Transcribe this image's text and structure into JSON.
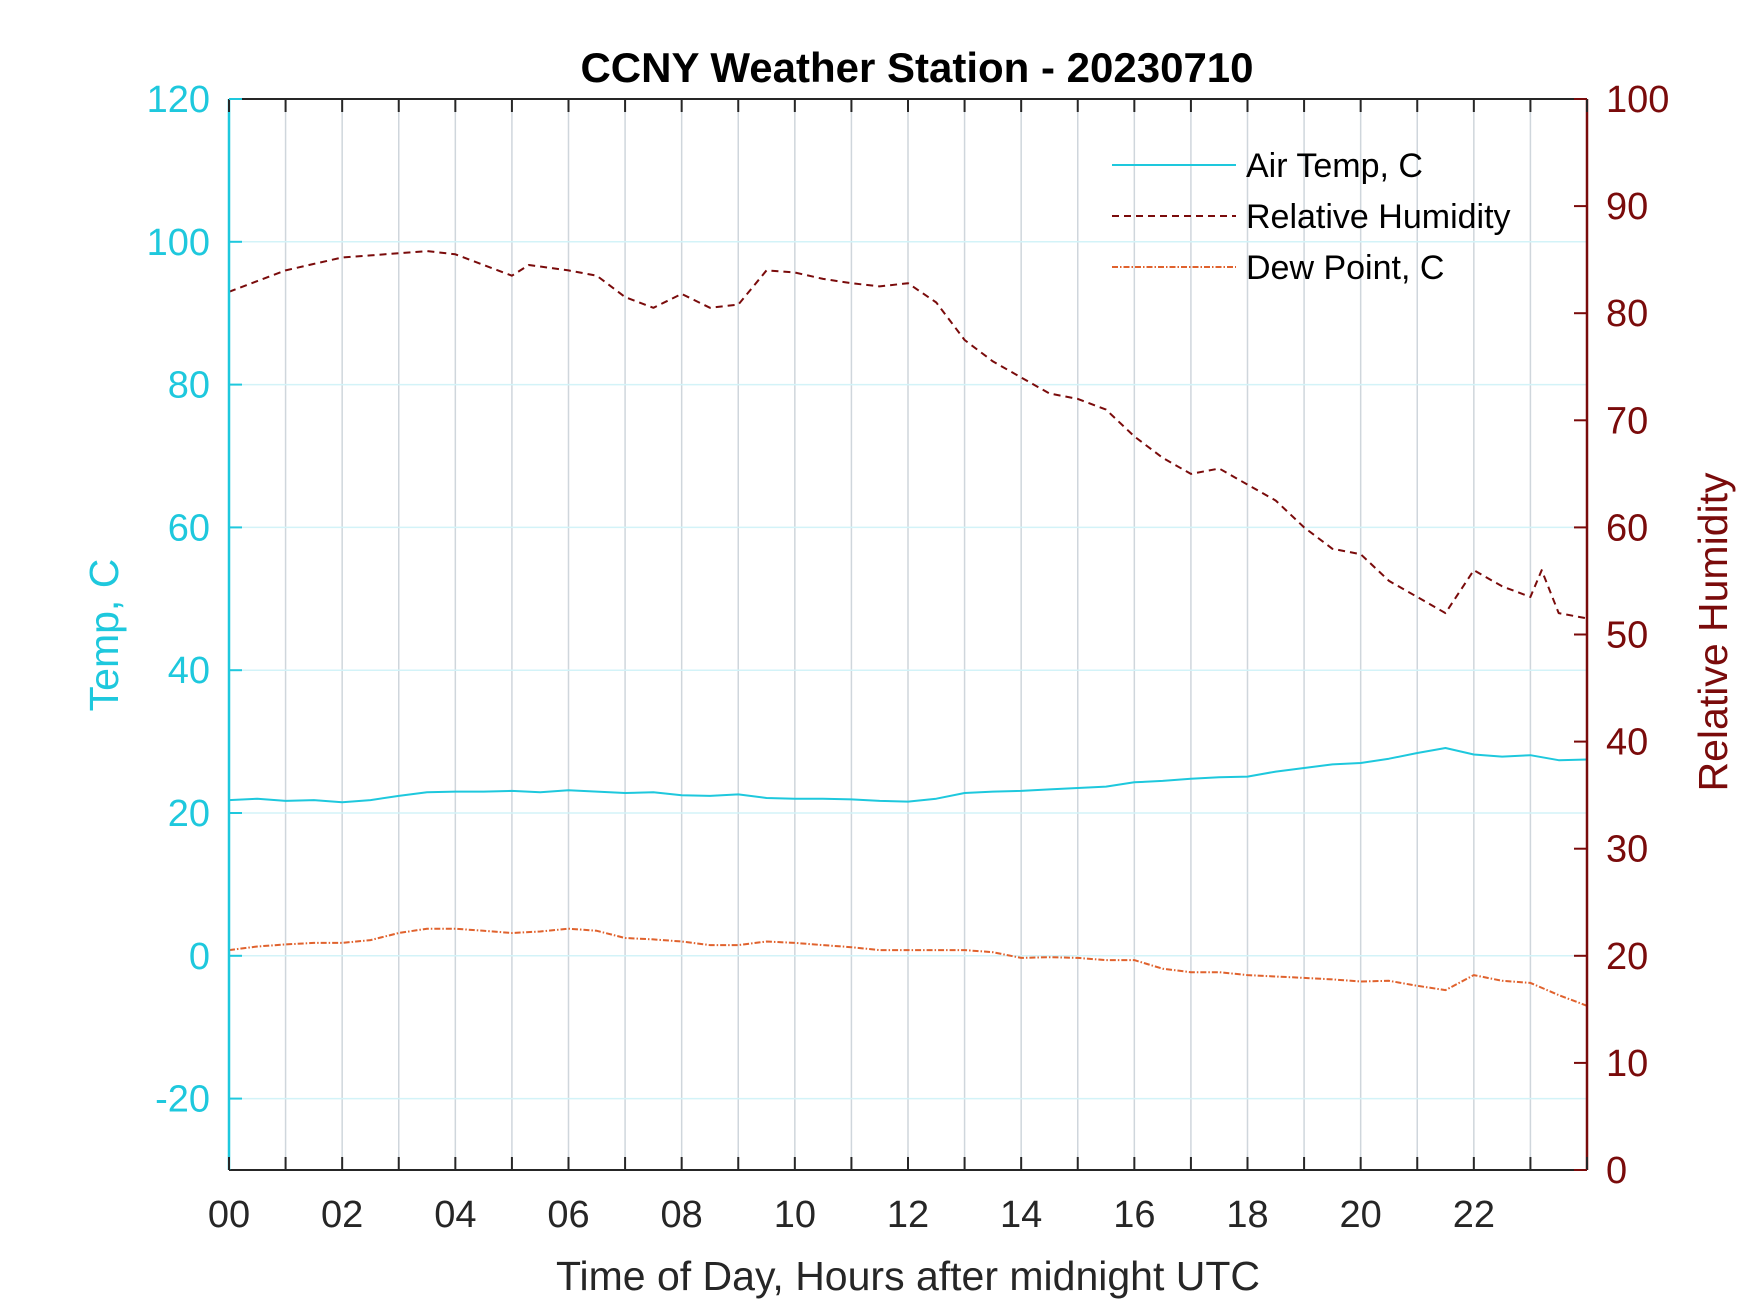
{
  "chart_data": {
    "type": "line",
    "title": "CCNY Weather Station - 20230710",
    "xlabel": "Time of Day, Hours after midnight UTC",
    "ylabel_left": "Temp, C",
    "ylabel_right": "Relative Humidity",
    "xlim": [
      0,
      24
    ],
    "ylim_left": [
      -30,
      120
    ],
    "ylim_right": [
      0,
      100
    ],
    "x_ticks": [
      0,
      2,
      4,
      6,
      8,
      10,
      12,
      14,
      16,
      18,
      20,
      22
    ],
    "x_tick_labels": [
      "00",
      "02",
      "04",
      "06",
      "08",
      "10",
      "12",
      "14",
      "16",
      "18",
      "20",
      "22"
    ],
    "y_left_ticks": [
      -20,
      0,
      20,
      40,
      60,
      80,
      100,
      120
    ],
    "y_left_tick_labels": [
      "-20",
      "0",
      "20",
      "40",
      "60",
      "80",
      "100",
      "120"
    ],
    "y_right_ticks": [
      0,
      10,
      20,
      30,
      40,
      50,
      60,
      70,
      80,
      90,
      100
    ],
    "y_right_tick_labels": [
      "0",
      "10",
      "20",
      "30",
      "40",
      "50",
      "60",
      "70",
      "80",
      "90",
      "100"
    ],
    "grid": "vertical lines every hour; horizontal lines at left-axis ticks",
    "legend_position": "top-right",
    "colors": {
      "left_axis": "#1ec8dd",
      "right_axis": "#7a0b0b",
      "air_temp": "#1ec8dd",
      "humidity": "#7a0b0b",
      "dew_point": "#e0622d",
      "grid_vertical": "#cfd6dc",
      "grid_horizontal": "#d3f3f8"
    },
    "series": [
      {
        "name": "Air Temp, C",
        "axis": "left",
        "style": "solid",
        "x": [
          0,
          0.5,
          1,
          1.5,
          2,
          2.5,
          3,
          3.5,
          4,
          4.5,
          5,
          5.5,
          6,
          6.5,
          7,
          7.5,
          8,
          8.5,
          9,
          9.5,
          10,
          10.5,
          11,
          11.5,
          12,
          12.5,
          13,
          13.5,
          14,
          14.5,
          15,
          15.5,
          16,
          16.5,
          17,
          17.5,
          18,
          18.5,
          19,
          19.5,
          20,
          20.5,
          21,
          21.5,
          22,
          22.5,
          23,
          23.5,
          24
        ],
        "y": [
          21.8,
          22.0,
          21.7,
          21.8,
          21.5,
          21.8,
          22.4,
          22.9,
          23.0,
          23.0,
          23.1,
          22.9,
          23.2,
          23.0,
          22.8,
          22.9,
          22.5,
          22.4,
          22.6,
          22.1,
          22.0,
          22.0,
          21.9,
          21.7,
          21.6,
          22.0,
          22.8,
          23.0,
          23.1,
          23.3,
          23.5,
          23.7,
          24.3,
          24.5,
          24.8,
          25.0,
          25.1,
          25.8,
          26.3,
          26.8,
          27.0,
          27.6,
          28.4,
          29.1,
          28.2,
          27.9,
          28.1,
          27.4,
          27.5
        ]
      },
      {
        "name": "Relative Humidity",
        "axis": "right",
        "style": "dashed",
        "x": [
          0,
          0.5,
          1,
          1.5,
          2,
          2.5,
          3,
          3.5,
          4,
          4.5,
          5,
          5.3,
          6,
          6.5,
          7,
          7.5,
          8,
          8.5,
          9,
          9.5,
          10,
          10.5,
          11,
          11.5,
          12,
          12.5,
          13,
          13.5,
          14,
          14.5,
          15,
          15.5,
          16,
          16.5,
          17,
          17.5,
          18,
          18.5,
          19,
          19.5,
          20,
          20.5,
          21,
          21.5,
          22,
          22.5,
          23,
          23.2,
          23.5,
          24
        ],
        "y": [
          82.0,
          83.0,
          84.0,
          84.6,
          85.2,
          85.4,
          85.6,
          85.8,
          85.5,
          84.5,
          83.5,
          84.5,
          84.0,
          83.5,
          81.5,
          80.5,
          81.8,
          80.5,
          80.8,
          84.0,
          83.8,
          83.2,
          82.8,
          82.5,
          82.8,
          81.0,
          77.5,
          75.5,
          74.0,
          72.5,
          72.0,
          71.0,
          68.5,
          66.5,
          65.0,
          65.5,
          64.0,
          62.5,
          60.0,
          58.0,
          57.5,
          55.0,
          53.5,
          52.0,
          56.0,
          54.5,
          53.5,
          56.0,
          52.0,
          51.5
        ]
      },
      {
        "name": "Dew Point, C",
        "axis": "left",
        "style": "dash-dot",
        "x": [
          0,
          0.5,
          1,
          1.5,
          2,
          2.5,
          3,
          3.5,
          4,
          4.5,
          5,
          5.5,
          6,
          6.5,
          7,
          7.5,
          8,
          8.5,
          9,
          9.5,
          10,
          10.5,
          11,
          11.5,
          12,
          12.5,
          13,
          13.5,
          14,
          14.5,
          15,
          15.5,
          16,
          16.5,
          17,
          17.5,
          18,
          18.5,
          19,
          19.5,
          20,
          20.5,
          21,
          21.5,
          22,
          22.5,
          23,
          23.5,
          24
        ],
        "y": [
          0.8,
          1.3,
          1.6,
          1.8,
          1.8,
          2.2,
          3.2,
          3.8,
          3.8,
          3.5,
          3.2,
          3.4,
          3.8,
          3.5,
          2.5,
          2.3,
          2.0,
          1.5,
          1.5,
          2.0,
          1.8,
          1.5,
          1.2,
          0.8,
          0.8,
          0.8,
          0.8,
          0.5,
          -0.3,
          -0.2,
          -0.3,
          -0.6,
          -0.6,
          -1.8,
          -2.3,
          -2.3,
          -2.7,
          -2.9,
          -3.1,
          -3.3,
          -3.6,
          -3.5,
          -4.2,
          -4.8,
          -2.7,
          -3.5,
          -3.8,
          -5.5,
          -7.0
        ]
      }
    ]
  }
}
